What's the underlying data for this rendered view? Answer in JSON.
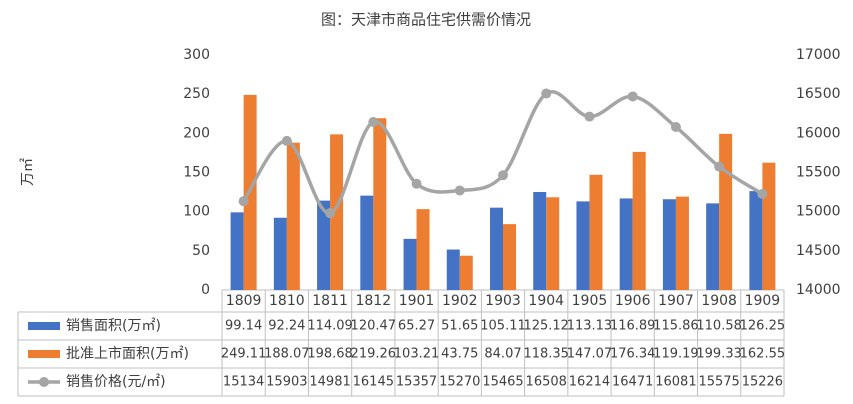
{
  "chart_data": {
    "type": "bar",
    "title": "图：天津市商品住宅供需价情况",
    "y_label": "万㎡",
    "categories": [
      "1809",
      "1810",
      "1811",
      "1812",
      "1901",
      "1902",
      "1903",
      "1904",
      "1905",
      "1906",
      "1907",
      "1908",
      "1909"
    ],
    "series": [
      {
        "name": "销售面积(万㎡)",
        "color": "#4472c4",
        "values": [
          99.14,
          92.24,
          114.09,
          120.47,
          65.27,
          51.65,
          105.11,
          125.12,
          113.13,
          116.89,
          115.86,
          110.58,
          126.25
        ]
      },
      {
        "name": "批准上市面积(万㎡)",
        "color": "#ed7d31",
        "values": [
          249.11,
          188.07,
          198.68,
          219.26,
          103.21,
          43.75,
          84.07,
          118.35,
          147.07,
          176.34,
          119.19,
          199.33,
          162.55
        ]
      },
      {
        "name": "销售价格(元/㎡)",
        "color": "#a5a5a5",
        "type": "line",
        "axis": "y2",
        "values": [
          15134,
          15903,
          14981,
          16145,
          15357,
          15270,
          15465,
          16508,
          16214,
          16471,
          16081,
          15575,
          15226
        ]
      }
    ],
    "ylim": [
      0,
      300
    ],
    "yticks": [
      0,
      50,
      100,
      150,
      200,
      250,
      300
    ],
    "y2lim": [
      14000,
      17000
    ],
    "y2ticks": [
      14000,
      14500,
      15000,
      15500,
      16000,
      16500,
      17000
    ]
  }
}
